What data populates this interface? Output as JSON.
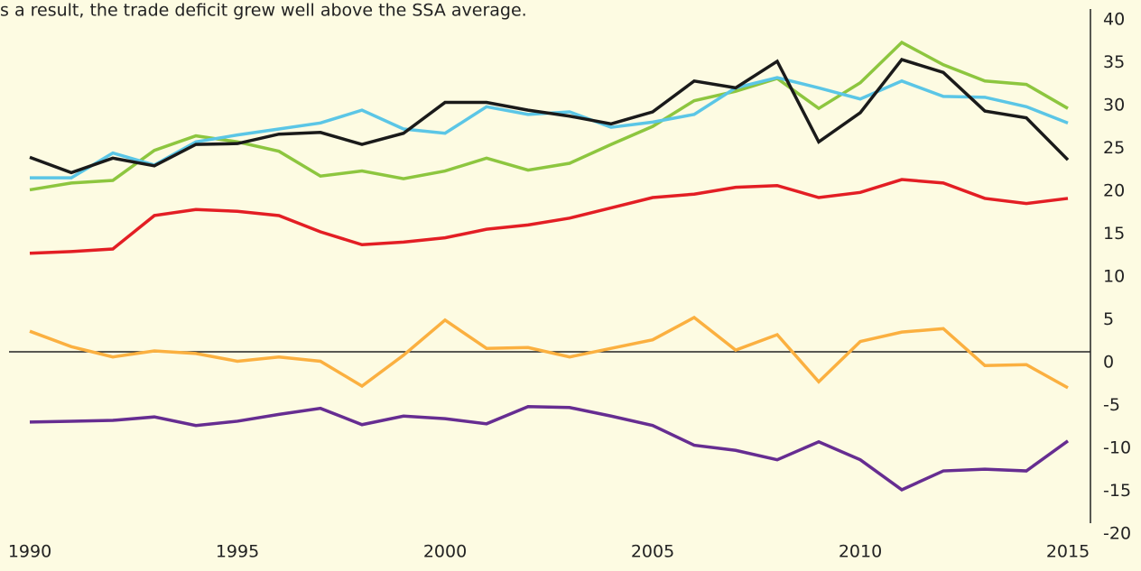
{
  "chart_data": {
    "type": "line",
    "annotation": "s a result, the trade deficit grew well above the SSA average.",
    "x": [
      1990,
      1991,
      1992,
      1993,
      1994,
      1995,
      1996,
      1997,
      1998,
      1999,
      2000,
      2001,
      2002,
      2003,
      2004,
      2005,
      2006,
      2007,
      2008,
      2009,
      2010,
      2011,
      2012,
      2013,
      2014,
      2015
    ],
    "xlim": [
      1990,
      2015
    ],
    "xticks": [
      1990,
      1995,
      2000,
      2005,
      2010,
      2015
    ],
    "ylim": [
      -20,
      40
    ],
    "yticks": [
      40,
      35,
      30,
      25,
      20,
      15,
      10,
      5,
      0,
      -5,
      -10,
      -15,
      -20
    ],
    "series": [
      {
        "color": "#8dc63f",
        "values": [
          18.9,
          19.7,
          20.0,
          23.5,
          25.2,
          24.5,
          23.4,
          20.5,
          21.1,
          20.2,
          21.1,
          22.6,
          21.2,
          22.0,
          24.2,
          26.3,
          29.3,
          30.4,
          31.9,
          28.4,
          31.4,
          36.1,
          33.5,
          31.6,
          31.2,
          28.4
        ]
      },
      {
        "color": "#5bc6e6",
        "values": [
          20.3,
          20.3,
          23.2,
          21.8,
          24.5,
          25.3,
          26.0,
          26.7,
          28.2,
          26.0,
          25.5,
          28.6,
          27.7,
          28.0,
          26.2,
          26.8,
          27.7,
          30.8,
          32.0,
          30.8,
          29.5,
          31.6,
          29.8,
          29.7,
          28.6,
          26.7
        ]
      },
      {
        "color": "#1a1a1a",
        "values": [
          22.7,
          20.9,
          22.6,
          21.7,
          24.2,
          24.3,
          25.4,
          25.6,
          24.2,
          25.5,
          29.1,
          29.1,
          28.2,
          27.5,
          26.6,
          28.0,
          31.6,
          30.8,
          33.9,
          24.5,
          27.9,
          34.1,
          32.6,
          28.1,
          27.3,
          22.4
        ]
      },
      {
        "color": "#e31e24",
        "values": [
          11.5,
          11.7,
          12.0,
          15.9,
          16.6,
          16.4,
          15.9,
          14.0,
          12.5,
          12.8,
          13.3,
          14.3,
          14.8,
          15.6,
          16.8,
          18.0,
          18.4,
          19.2,
          19.4,
          18.0,
          18.6,
          20.1,
          19.7,
          17.9,
          17.3,
          17.9
        ]
      },
      {
        "color": "#fbb040",
        "values": [
          2.4,
          0.6,
          -0.6,
          0.1,
          -0.2,
          -1.1,
          -0.6,
          -1.1,
          -4.0,
          -0.4,
          3.7,
          0.4,
          0.5,
          -0.6,
          0.4,
          1.4,
          4.0,
          0.2,
          2.0,
          -3.5,
          1.2,
          2.3,
          2.7,
          -1.6,
          -1.5,
          -4.2
        ]
      },
      {
        "color": "#662d91",
        "values": [
          -8.2,
          -8.1,
          -8.0,
          -7.6,
          -8.6,
          -8.1,
          -7.3,
          -6.6,
          -8.5,
          -7.5,
          -7.8,
          -8.4,
          -6.4,
          -6.5,
          -7.5,
          -8.6,
          -10.9,
          -11.5,
          -12.6,
          -10.5,
          -12.6,
          -16.1,
          -13.9,
          -13.7,
          -13.9,
          -10.4
        ]
      }
    ]
  }
}
